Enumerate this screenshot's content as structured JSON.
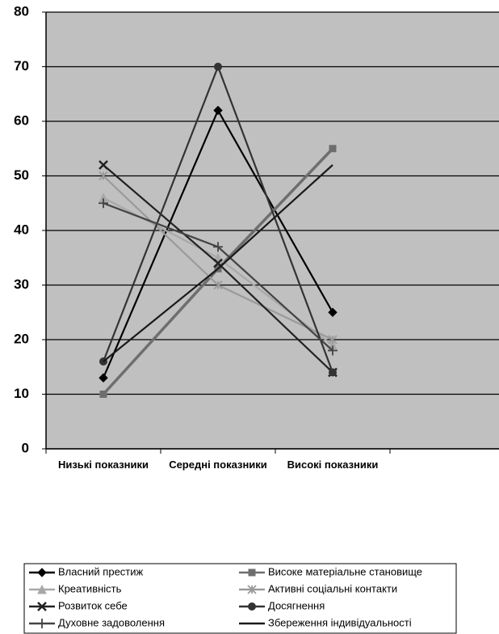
{
  "chart_data": {
    "type": "line",
    "categories": [
      "Низькі показники",
      "Середні показники",
      "Високі показники",
      null
    ],
    "series": [
      {
        "name": "Власний престиж",
        "color": "#000000",
        "marker": "diamond",
        "values": [
          13,
          62,
          25,
          null
        ]
      },
      {
        "name": "Високе матеріальне становище",
        "color": "#6e6e6e",
        "marker": "square",
        "values": [
          10,
          33,
          55,
          null
        ]
      },
      {
        "name": "Креативність",
        "color": "#a8a8a8",
        "marker": "triangle",
        "values": [
          46,
          35,
          19,
          null
        ]
      },
      {
        "name": "Активні соціальні контакти",
        "color": "#9a9a9a",
        "marker": "asterisk",
        "values": [
          50,
          30,
          20,
          null
        ]
      },
      {
        "name": "Розвиток себе",
        "color": "#222222",
        "marker": "x",
        "values": [
          52,
          34,
          14,
          null
        ]
      },
      {
        "name": "Досягнення",
        "color": "#333333",
        "marker": "circle",
        "values": [
          16,
          70,
          14,
          null
        ]
      },
      {
        "name": "Духовне задоволення",
        "color": "#444444",
        "marker": "plus",
        "values": [
          45,
          37,
          18,
          null
        ]
      },
      {
        "name": "Збереження індивідуальності",
        "color": "#1a1a1a",
        "marker": "dash",
        "values": [
          16,
          33,
          52,
          null
        ]
      }
    ],
    "ylim": [
      0,
      80
    ],
    "yticks": [
      0,
      10,
      20,
      30,
      40,
      50,
      60,
      70,
      80
    ],
    "grid": true
  }
}
